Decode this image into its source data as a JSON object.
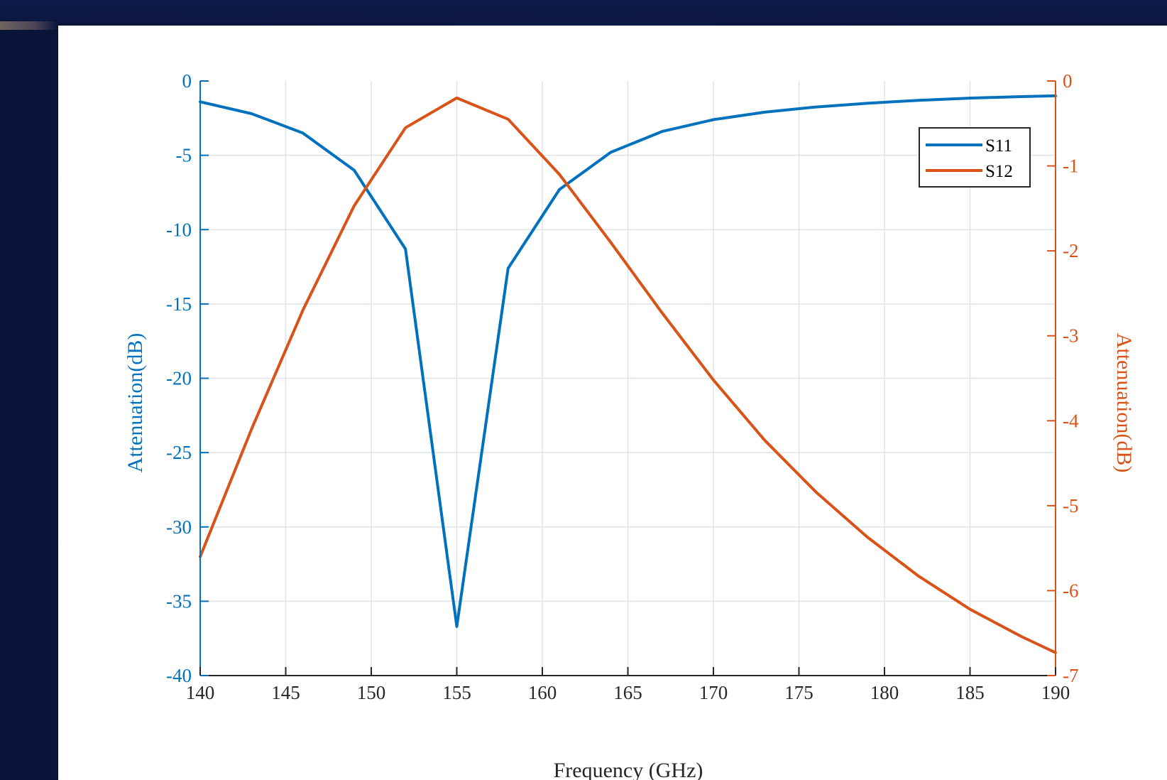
{
  "chart_data": {
    "type": "line",
    "xlabel": "Frequency (GHz)",
    "ylabel_left": "Attenuation(dB)",
    "ylabel_right": "Attenuation(dB)",
    "xlim": [
      140,
      190
    ],
    "ylim_left": [
      -40,
      0
    ],
    "ylim_right": [
      -7,
      0
    ],
    "x_ticks": [
      140,
      145,
      150,
      155,
      160,
      165,
      170,
      175,
      180,
      185,
      190
    ],
    "y_left_ticks": [
      0,
      -5,
      -10,
      -15,
      -20,
      -25,
      -30,
      -35,
      -40
    ],
    "y_right_ticks": [
      0,
      -1,
      -2,
      -3,
      -4,
      -5,
      -6,
      -7
    ],
    "grid": true,
    "legend_position": "top-right",
    "colors": {
      "left_axis": "#0072BD",
      "right_axis": "#D95319",
      "grid": "#dfe3ea",
      "axis_box": "#000000"
    },
    "series": [
      {
        "name": "S11",
        "axis": "left",
        "color": "#0072BD",
        "x": [
          140,
          143,
          146,
          149,
          152,
          155,
          158,
          161,
          164,
          167,
          170,
          173,
          176,
          179,
          182,
          185,
          188,
          190
        ],
        "y": [
          -1.4,
          -2.2,
          -3.5,
          -6.0,
          -11.3,
          -36.7,
          -12.6,
          -7.3,
          -4.8,
          -3.4,
          -2.6,
          -2.1,
          -1.75,
          -1.5,
          -1.3,
          -1.15,
          -1.05,
          -1.0
        ]
      },
      {
        "name": "S12",
        "axis": "right",
        "color": "#D95319",
        "x": [
          140,
          143,
          146,
          149,
          152,
          155,
          158,
          161,
          164,
          167,
          170,
          173,
          176,
          179,
          182,
          185,
          188,
          190
        ],
        "y": [
          -5.6,
          -4.1,
          -2.7,
          -1.47,
          -0.55,
          -0.2,
          -0.45,
          -1.1,
          -1.9,
          -2.73,
          -3.52,
          -4.23,
          -4.84,
          -5.37,
          -5.83,
          -6.22,
          -6.54,
          -6.73
        ]
      }
    ]
  }
}
